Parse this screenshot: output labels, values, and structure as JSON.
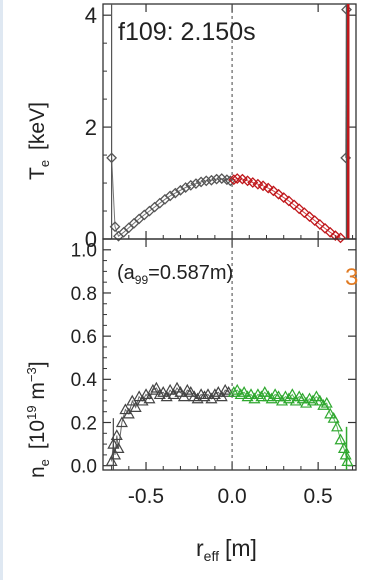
{
  "chart_data": [
    {
      "type": "scatter",
      "panel": "top",
      "title": "f109: 2.150s",
      "ylabel_main": "T",
      "ylabel_sub": "e",
      "ylabel_unit": "[keV]",
      "xlim": [
        -0.75,
        0.72
      ],
      "ylim": [
        0,
        4.2
      ],
      "yticks": [
        0,
        2,
        4
      ],
      "ytick_labels": [
        "0",
        "2",
        "4"
      ],
      "vline_x": 0.0,
      "series": [
        {
          "color": "#555555",
          "marker": "diamond",
          "points": [
            [
              -0.7,
              1.45
            ],
            [
              -0.68,
              0.22
            ],
            [
              -0.66,
              0.05
            ],
            [
              -0.63,
              0.12
            ],
            [
              -0.6,
              0.2
            ],
            [
              -0.57,
              0.28
            ],
            [
              -0.54,
              0.36
            ],
            [
              -0.51,
              0.43
            ],
            [
              -0.48,
              0.5
            ],
            [
              -0.45,
              0.57
            ],
            [
              -0.42,
              0.64
            ],
            [
              -0.39,
              0.71
            ],
            [
              -0.36,
              0.77
            ],
            [
              -0.33,
              0.82
            ],
            [
              -0.3,
              0.87
            ],
            [
              -0.27,
              0.92
            ],
            [
              -0.24,
              0.96
            ],
            [
              -0.21,
              0.99
            ],
            [
              -0.18,
              1.02
            ],
            [
              -0.15,
              1.04
            ],
            [
              -0.12,
              1.05
            ],
            [
              -0.09,
              1.07
            ],
            [
              -0.06,
              1.08
            ],
            [
              -0.03,
              1.06
            ],
            [
              -0.01,
              1.04
            ]
          ]
        },
        {
          "color": "#c0171b",
          "marker": "diamond",
          "points": [
            [
              0.01,
              1.06
            ],
            [
              0.03,
              1.08
            ],
            [
              0.06,
              1.07
            ],
            [
              0.09,
              1.04
            ],
            [
              0.12,
              1.01
            ],
            [
              0.15,
              0.98
            ],
            [
              0.18,
              0.95
            ],
            [
              0.21,
              0.91
            ],
            [
              0.24,
              0.86
            ],
            [
              0.27,
              0.8
            ],
            [
              0.3,
              0.74
            ],
            [
              0.33,
              0.68
            ],
            [
              0.36,
              0.61
            ],
            [
              0.39,
              0.54
            ],
            [
              0.42,
              0.47
            ],
            [
              0.45,
              0.4
            ],
            [
              0.48,
              0.33
            ],
            [
              0.51,
              0.26
            ],
            [
              0.54,
              0.19
            ],
            [
              0.57,
              0.12
            ],
            [
              0.6,
              0.06
            ],
            [
              0.63,
              0.02
            ]
          ]
        },
        {
          "color": "#555555",
          "marker": "diamond",
          "points": [
            [
              0.66,
              1.45
            ],
            [
              0.665,
              4.1
            ]
          ]
        }
      ]
    },
    {
      "type": "scatter",
      "panel": "bottom",
      "annotation": "(a99=0.587m)",
      "annotation_main": "(a",
      "annotation_sub": "99",
      "annotation_rest": "=0.587m)",
      "corner_label": "3",
      "ylabel_main": "n",
      "ylabel_sub": "e",
      "ylabel_unit_pre": "[10",
      "ylabel_unit_exp1": "19",
      "ylabel_unit_mid": " m",
      "ylabel_unit_exp2": "−3",
      "ylabel_unit_post": "]",
      "xlabel_main": "r",
      "xlabel_sub": "eff",
      "xlabel_unit": "[m]",
      "xlim": [
        -0.75,
        0.72
      ],
      "ylim": [
        -0.02,
        1.05
      ],
      "yticks": [
        0.0,
        0.2,
        0.4,
        0.6,
        0.8,
        1.0
      ],
      "ytick_labels": [
        "0.0",
        "0.2",
        "0.4",
        "0.6",
        "0.8",
        "1.0"
      ],
      "xticks": [
        -0.5,
        0.0,
        0.5
      ],
      "xtick_labels": [
        "-0.5",
        "0.0",
        "0.5"
      ],
      "vline_x": 0.0,
      "series": [
        {
          "color": "#444444",
          "marker": "triangle",
          "points": [
            [
              -0.7,
              0.02
            ],
            [
              -0.69,
              0.1
            ],
            [
              -0.68,
              0.05
            ],
            [
              -0.67,
              0.14
            ],
            [
              -0.66,
              0.08
            ],
            [
              -0.64,
              0.2
            ],
            [
              -0.62,
              0.26
            ],
            [
              -0.6,
              0.24
            ],
            [
              -0.58,
              0.3
            ],
            [
              -0.56,
              0.27
            ],
            [
              -0.54,
              0.32
            ],
            [
              -0.52,
              0.3
            ],
            [
              -0.5,
              0.33
            ],
            [
              -0.48,
              0.31
            ],
            [
              -0.46,
              0.35
            ],
            [
              -0.44,
              0.36
            ],
            [
              -0.42,
              0.33
            ],
            [
              -0.4,
              0.34
            ],
            [
              -0.38,
              0.32
            ],
            [
              -0.36,
              0.35
            ],
            [
              -0.34,
              0.33
            ],
            [
              -0.32,
              0.36
            ],
            [
              -0.3,
              0.34
            ],
            [
              -0.28,
              0.32
            ],
            [
              -0.26,
              0.35
            ],
            [
              -0.24,
              0.34
            ],
            [
              -0.22,
              0.32
            ],
            [
              -0.2,
              0.31
            ],
            [
              -0.18,
              0.33
            ],
            [
              -0.16,
              0.32
            ],
            [
              -0.14,
              0.33
            ],
            [
              -0.12,
              0.31
            ],
            [
              -0.1,
              0.33
            ],
            [
              -0.08,
              0.34
            ],
            [
              -0.06,
              0.32
            ],
            [
              -0.04,
              0.35
            ],
            [
              -0.02,
              0.34
            ]
          ]
        },
        {
          "color": "#2fa82f",
          "marker": "triangle",
          "points": [
            [
              0.01,
              0.34
            ],
            [
              0.03,
              0.35
            ],
            [
              0.05,
              0.33
            ],
            [
              0.07,
              0.34
            ],
            [
              0.09,
              0.32
            ],
            [
              0.11,
              0.33
            ],
            [
              0.13,
              0.31
            ],
            [
              0.15,
              0.33
            ],
            [
              0.17,
              0.32
            ],
            [
              0.19,
              0.34
            ],
            [
              0.21,
              0.32
            ],
            [
              0.23,
              0.31
            ],
            [
              0.25,
              0.33
            ],
            [
              0.27,
              0.32
            ],
            [
              0.29,
              0.3
            ],
            [
              0.31,
              0.32
            ],
            [
              0.33,
              0.31
            ],
            [
              0.35,
              0.33
            ],
            [
              0.37,
              0.3
            ],
            [
              0.39,
              0.32
            ],
            [
              0.41,
              0.31
            ],
            [
              0.43,
              0.29
            ],
            [
              0.45,
              0.31
            ],
            [
              0.47,
              0.3
            ],
            [
              0.49,
              0.32
            ],
            [
              0.51,
              0.3
            ],
            [
              0.53,
              0.28
            ],
            [
              0.55,
              0.29
            ],
            [
              0.57,
              0.24
            ],
            [
              0.59,
              0.22
            ],
            [
              0.61,
              0.18
            ],
            [
              0.63,
              0.12
            ],
            [
              0.65,
              0.08
            ],
            [
              0.66,
              0.05
            ],
            [
              0.67,
              0.02
            ]
          ]
        }
      ]
    }
  ]
}
